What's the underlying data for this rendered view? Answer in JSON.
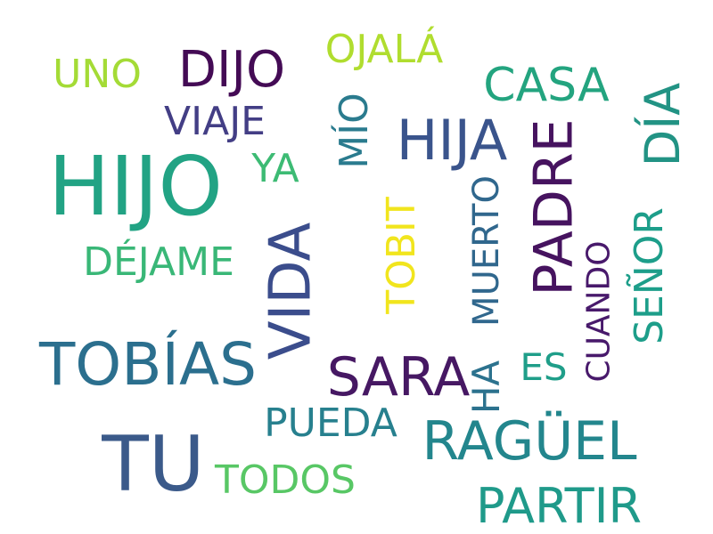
{
  "words": [
    {
      "text": "HIJO",
      "color": "#22a384",
      "vertical": false
    },
    {
      "text": "TU",
      "color": "#3b5a8a",
      "vertical": false
    },
    {
      "text": "TOBÍAS",
      "color": "#2b6f8e",
      "vertical": false
    },
    {
      "text": "VIDA",
      "color": "#3b4d8c",
      "vertical": true
    },
    {
      "text": "PADRE",
      "color": "#46135f",
      "vertical": true
    },
    {
      "text": "HIJA",
      "color": "#3a548c",
      "vertical": false
    },
    {
      "text": "SARA",
      "color": "#461863",
      "vertical": false
    },
    {
      "text": "RAGÜEL",
      "color": "#23868d",
      "vertical": false
    },
    {
      "text": "PARTIR",
      "color": "#1f9a8a",
      "vertical": false
    },
    {
      "text": "DÍA",
      "color": "#229384",
      "vertical": true
    },
    {
      "text": "DIJO",
      "color": "#440b55",
      "vertical": false
    },
    {
      "text": "CASA",
      "color": "#23a47f",
      "vertical": false
    },
    {
      "text": "SEÑOR",
      "color": "#1d9e8a",
      "vertical": true
    },
    {
      "text": "MÍO",
      "color": "#2a7b8e",
      "vertical": true
    },
    {
      "text": "DÉJAME",
      "color": "#39b777",
      "vertical": false
    },
    {
      "text": "PUEDA",
      "color": "#27808e",
      "vertical": false
    },
    {
      "text": "TODOS",
      "color": "#58c765",
      "vertical": false
    },
    {
      "text": "OJALÁ",
      "color": "#b0dd2f",
      "vertical": false
    },
    {
      "text": "UNO",
      "color": "#a4db36",
      "vertical": false
    },
    {
      "text": "VIAJE",
      "color": "#433e85",
      "vertical": false
    },
    {
      "text": "YA",
      "color": "#3dbb74",
      "vertical": false
    },
    {
      "text": "TOBIT",
      "color": "#f1e51d",
      "vertical": true
    },
    {
      "text": "MUERTO",
      "color": "#30678d",
      "vertical": true
    },
    {
      "text": "HA",
      "color": "#2c728e",
      "vertical": true
    },
    {
      "text": "ES",
      "color": "#1f9e89",
      "vertical": false
    },
    {
      "text": "CUANDO",
      "color": "#48196b",
      "vertical": true
    }
  ]
}
